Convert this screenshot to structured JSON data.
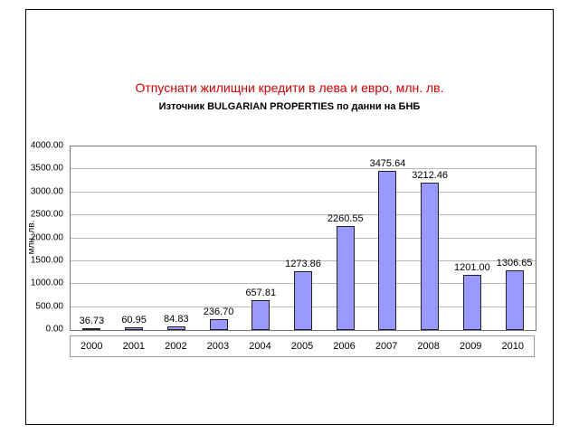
{
  "chart_data": {
    "type": "bar",
    "title": "Отпуснати жилищни кредити в лева и евро, млн. лв.",
    "subtitle": "Източник BULGARIAN PROPERTIES по данни на БНБ",
    "ylabel": "млн. лв.",
    "categories": [
      "2000",
      "2001",
      "2002",
      "2003",
      "2004",
      "2005",
      "2006",
      "2007",
      "2008",
      "2009",
      "2010"
    ],
    "values": [
      36.73,
      60.95,
      84.83,
      236.7,
      657.81,
      1273.86,
      2260.55,
      3475.64,
      3212.46,
      1201.0,
      1306.65
    ],
    "value_labels": [
      "36.73",
      "60.95",
      "84.83",
      "236.70",
      "657.81",
      "1273.86",
      "2260.55",
      "3475.64",
      "3212.46",
      "1201.00",
      "1306.65"
    ],
    "ylim": [
      0,
      4000
    ],
    "yticks": [
      "0.00",
      "500.00",
      "1000.00",
      "1500.00",
      "2000.00",
      "2500.00",
      "3000.00",
      "3500.00",
      "4000.00"
    ],
    "grid": true,
    "legend": "none",
    "colors": {
      "bar_fill": "#9999FF",
      "bar_border": "#222222",
      "title": "#cc0000",
      "gridline": "#b8b8b8"
    }
  }
}
